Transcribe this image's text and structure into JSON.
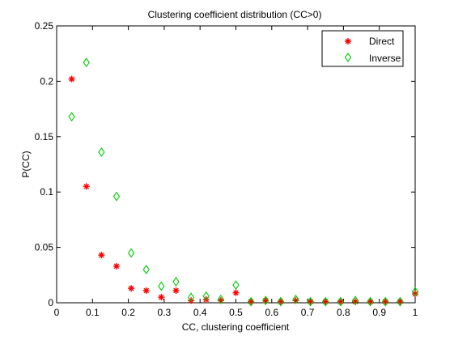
{
  "chart_data": {
    "type": "scatter",
    "title": "Clustering coefficient distribution (CC>0)",
    "xlabel": "CC, clustering coefficient",
    "ylabel": "P(CC)",
    "xlim": [
      0,
      1
    ],
    "ylim": [
      0,
      0.25
    ],
    "xticks": [
      0,
      0.1,
      0.2,
      0.3,
      0.4,
      0.5,
      0.6,
      0.7,
      0.8,
      0.9,
      1
    ],
    "xtick_labels": [
      "0",
      "0.1",
      "0.2",
      "0.3",
      "0.4",
      "0.5",
      "0.6",
      "0.7",
      "0.8",
      "0.9",
      "1"
    ],
    "yticks": [
      0,
      0.05,
      0.1,
      0.15,
      0.2,
      0.25
    ],
    "ytick_labels": [
      "0",
      "0.05",
      "0.1",
      "0.15",
      "0.2",
      "0.25"
    ],
    "grid": false,
    "legend_position": "top-right",
    "series": [
      {
        "name": "Direct",
        "marker": "star",
        "color": "#ff0000",
        "x": [
          0.042,
          0.083,
          0.125,
          0.167,
          0.208,
          0.25,
          0.292,
          0.333,
          0.375,
          0.417,
          0.458,
          0.5,
          0.542,
          0.583,
          0.625,
          0.667,
          0.708,
          0.75,
          0.792,
          0.833,
          0.875,
          0.917,
          0.958,
          1.0
        ],
        "y": [
          0.202,
          0.105,
          0.043,
          0.033,
          0.013,
          0.011,
          0.005,
          0.011,
          0.002,
          0.003,
          0.002,
          0.009,
          0.001,
          0.002,
          0.001,
          0.002,
          0.001,
          0.001,
          0.001,
          0.001,
          0.001,
          0.001,
          0.001,
          0.008
        ]
      },
      {
        "name": "Inverse",
        "marker": "diamond",
        "color": "#00cc00",
        "x": [
          0.042,
          0.083,
          0.125,
          0.167,
          0.208,
          0.25,
          0.292,
          0.333,
          0.375,
          0.417,
          0.458,
          0.5,
          0.542,
          0.583,
          0.625,
          0.667,
          0.708,
          0.75,
          0.792,
          0.833,
          0.875,
          0.917,
          0.958,
          1.0
        ],
        "y": [
          0.168,
          0.217,
          0.136,
          0.096,
          0.045,
          0.03,
          0.015,
          0.019,
          0.005,
          0.006,
          0.003,
          0.016,
          0.001,
          0.002,
          0.001,
          0.003,
          0.001,
          0.001,
          0.001,
          0.002,
          0.001,
          0.001,
          0.001,
          0.01
        ]
      }
    ]
  }
}
